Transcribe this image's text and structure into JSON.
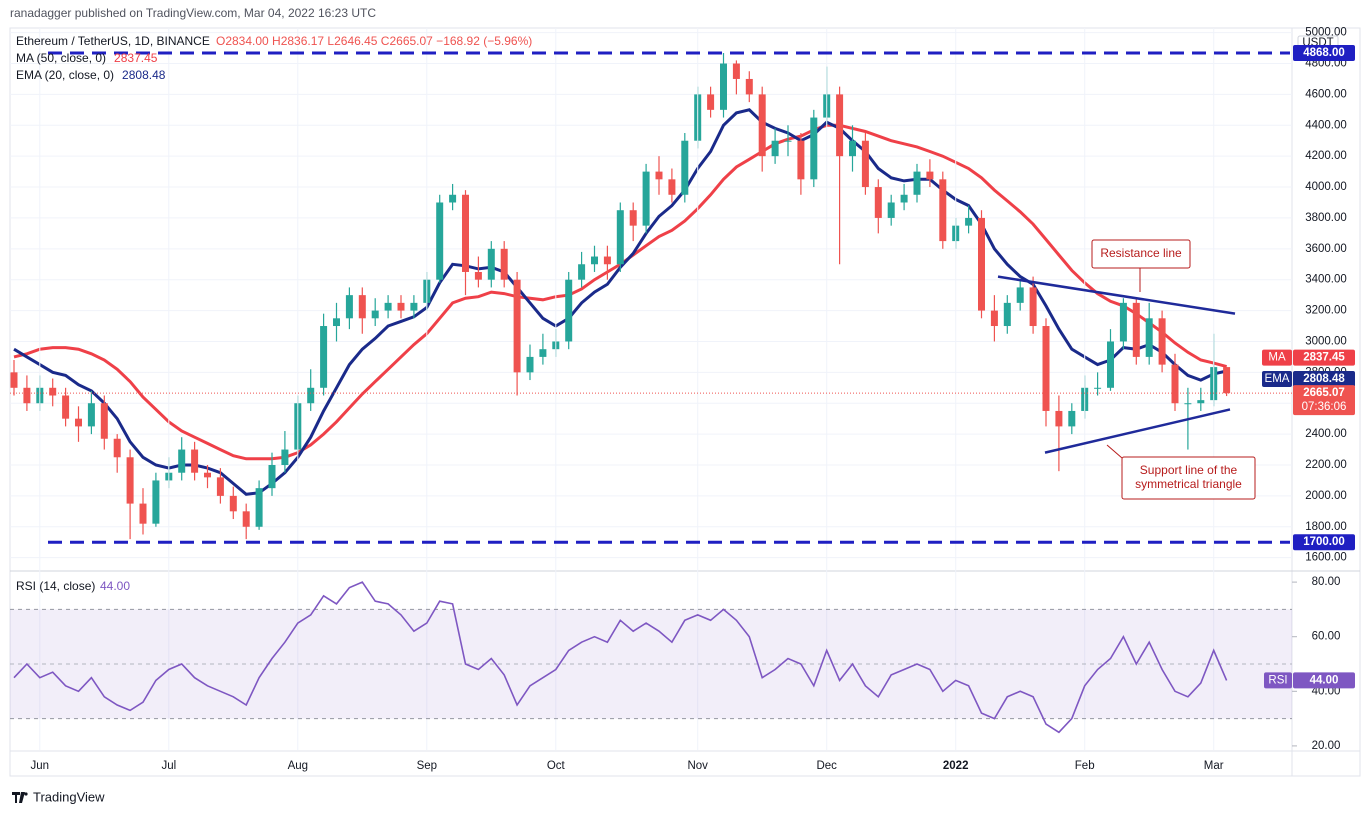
{
  "chart_data": {
    "type": "candlestick",
    "header": "ranadagger published on TradingView.com, Mar 04, 2022 16:23 UTC",
    "title": "Ethereum / TetherUS, 1D, BINANCE",
    "ohlc_text": "O2834.00 H2836.17 L2646.45 C2665.07 −168.92 (−5.96%)",
    "currency": "USDT",
    "color_up": "#26a69a",
    "color_down": "#ef5350",
    "categories": [
      null,
      null,
      "Jun",
      null,
      null,
      null,
      null,
      null,
      null,
      null,
      null,
      null,
      "Jul",
      null,
      null,
      null,
      null,
      null,
      null,
      null,
      null,
      null,
      "Aug",
      null,
      null,
      null,
      null,
      null,
      null,
      null,
      null,
      null,
      "Sep",
      null,
      null,
      null,
      null,
      null,
      null,
      null,
      null,
      null,
      "Oct",
      null,
      null,
      null,
      null,
      null,
      null,
      null,
      null,
      null,
      null,
      "Nov",
      null,
      null,
      null,
      null,
      null,
      null,
      null,
      null,
      null,
      "Dec",
      null,
      null,
      null,
      null,
      null,
      null,
      null,
      null,
      null,
      "2022",
      null,
      null,
      null,
      null,
      null,
      null,
      null,
      null,
      null,
      "Feb",
      null,
      null,
      null,
      null,
      null,
      null,
      null,
      null,
      null,
      "Mar",
      null
    ],
    "open": [
      2800,
      2700,
      2600,
      2700,
      2650,
      2500,
      2450,
      2600,
      2370,
      2250,
      1950,
      1820,
      2100,
      2150,
      2300,
      2150,
      2120,
      2000,
      1900,
      1800,
      2050,
      2200,
      2300,
      2600,
      2700,
      3100,
      3150,
      3300,
      3150,
      3200,
      3250,
      3200,
      3250,
      3400,
      3900,
      3950,
      3450,
      3400,
      3600,
      3400,
      2800,
      2900,
      2950,
      3000,
      3400,
      3500,
      3550,
      3500,
      3850,
      3750,
      4100,
      4050,
      3950,
      4300,
      4600,
      4500,
      4800,
      4700,
      4600,
      4200,
      4300,
      4300,
      4050,
      4450,
      4600,
      4200,
      4300,
      4000,
      3800,
      3900,
      3950,
      4100,
      4050,
      3650,
      3750,
      3800,
      3200,
      3100,
      3250,
      3350,
      3100,
      2550,
      2450,
      2550,
      2700,
      2700,
      3000,
      3250,
      2900,
      3150,
      2850,
      2600,
      2600,
      2620,
      2834
    ],
    "high": [
      2880,
      2780,
      2780,
      2760,
      2700,
      2580,
      2680,
      2650,
      2400,
      2300,
      2050,
      2150,
      2250,
      2380,
      2350,
      2200,
      2180,
      2060,
      1950,
      2100,
      2280,
      2420,
      2650,
      2820,
      3180,
      3250,
      3350,
      3350,
      3280,
      3300,
      3300,
      3300,
      3450,
      3950,
      4020,
      3980,
      3550,
      3650,
      3650,
      3450,
      2980,
      3050,
      3080,
      3450,
      3580,
      3620,
      3620,
      3900,
      3900,
      4150,
      4200,
      4120,
      4350,
      4650,
      4650,
      4868,
      4820,
      4750,
      4650,
      4380,
      4400,
      4350,
      4500,
      4780,
      4650,
      4400,
      4350,
      4050,
      3950,
      4020,
      4150,
      4180,
      4100,
      3800,
      3880,
      3850,
      3300,
      3300,
      3400,
      3420,
      3150,
      2650,
      2600,
      2780,
      2800,
      3080,
      3280,
      3280,
      3250,
      3200,
      2920,
      2700,
      2700,
      3050,
      2836.17
    ],
    "low": [
      2650,
      2550,
      2550,
      2580,
      2450,
      2350,
      2400,
      2300,
      2150,
      1720,
      1750,
      1800,
      2050,
      2100,
      2100,
      2050,
      1950,
      1850,
      1720,
      1780,
      2000,
      2150,
      2280,
      2550,
      2650,
      3000,
      3080,
      3050,
      3100,
      3150,
      3150,
      3150,
      3200,
      3380,
      3850,
      3300,
      3350,
      3350,
      3350,
      2650,
      2750,
      2850,
      2900,
      2950,
      3350,
      3450,
      3400,
      3450,
      3650,
      3700,
      3950,
      3900,
      3900,
      4250,
      4450,
      4450,
      4600,
      4550,
      4100,
      4150,
      4200,
      3950,
      4000,
      4400,
      3500,
      4100,
      3950,
      3700,
      3750,
      3850,
      3900,
      4000,
      3600,
      3600,
      3700,
      3150,
      3000,
      3050,
      3200,
      3050,
      2450,
      2160,
      2400,
      2500,
      2650,
      2680,
      2950,
      2850,
      2850,
      2800,
      2550,
      2300,
      2550,
      2580,
      2646.45
    ],
    "close": [
      2700,
      2600,
      2700,
      2650,
      2500,
      2450,
      2600,
      2370,
      2250,
      1950,
      1820,
      2100,
      2150,
      2300,
      2150,
      2120,
      2000,
      1900,
      1800,
      2050,
      2200,
      2300,
      2600,
      2700,
      3100,
      3150,
      3300,
      3150,
      3200,
      3250,
      3200,
      3250,
      3400,
      3900,
      3950,
      3450,
      3400,
      3600,
      3400,
      2800,
      2900,
      2950,
      3000,
      3400,
      3500,
      3550,
      3500,
      3850,
      3750,
      4100,
      4050,
      3950,
      4300,
      4600,
      4500,
      4800,
      4700,
      4600,
      4200,
      4300,
      4300,
      4050,
      4450,
      4600,
      4200,
      4300,
      4000,
      3800,
      3900,
      3950,
      4100,
      4050,
      3650,
      3750,
      3800,
      3200,
      3100,
      3250,
      3350,
      3100,
      2550,
      2450,
      2550,
      2700,
      2700,
      3000,
      3250,
      2900,
      3150,
      2850,
      2600,
      2600,
      2620,
      2834,
      2665.07
    ],
    "ylim": [
      1520,
      5030
    ],
    "yticks": [
      {
        "value": 1600,
        "label": "1600.00"
      },
      {
        "value": 1800,
        "label": "1800.00"
      },
      {
        "value": 2000,
        "label": "2000.00"
      },
      {
        "value": 2200,
        "label": "2200.00"
      },
      {
        "value": 2400,
        "label": "2400.00"
      },
      {
        "value": 2600,
        "label": "2600.00"
      },
      {
        "value": 2800,
        "label": "2800.00"
      },
      {
        "value": 3000,
        "label": "3000.00"
      },
      {
        "value": 3200,
        "label": "3200.00"
      },
      {
        "value": 3400,
        "label": "3400.00"
      },
      {
        "value": 3600,
        "label": "3600.00"
      },
      {
        "value": 3800,
        "label": "3800.00"
      },
      {
        "value": 4000,
        "label": "4000.00"
      },
      {
        "value": 4200,
        "label": "4200.00"
      },
      {
        "value": 4400,
        "label": "4400.00"
      },
      {
        "value": 4600,
        "label": "4600.00"
      },
      {
        "value": 4800,
        "label": "4800.00"
      },
      {
        "value": 5000,
        "label": "5000.00"
      }
    ],
    "last_price": {
      "value": 2665.07,
      "countdown": "07:36:06"
    },
    "indicators": [
      {
        "legend": "MA (50, close, 0)",
        "tag": "MA",
        "value": 2837.45,
        "color": "#ef4048",
        "values": [
          2900,
          2920,
          2950,
          2960,
          2960,
          2950,
          2920,
          2880,
          2820,
          2740,
          2640,
          2560,
          2480,
          2420,
          2380,
          2340,
          2300,
          2260,
          2240,
          2240,
          2240,
          2250,
          2280,
          2330,
          2400,
          2480,
          2570,
          2660,
          2740,
          2820,
          2900,
          2980,
          3050,
          3150,
          3250,
          3280,
          3290,
          3320,
          3310,
          3290,
          3280,
          3270,
          3290,
          3300,
          3340,
          3400,
          3450,
          3500,
          3560,
          3620,
          3680,
          3720,
          3780,
          3860,
          3950,
          4050,
          4130,
          4180,
          4230,
          4280,
          4310,
          4330,
          4370,
          4400,
          4400,
          4380,
          4360,
          4330,
          4300,
          4280,
          4260,
          4230,
          4200,
          4160,
          4120,
          4060,
          3980,
          3910,
          3840,
          3760,
          3660,
          3560,
          3460,
          3380,
          3310,
          3260,
          3230,
          3180,
          3120,
          3060,
          2990,
          2930,
          2880,
          2860,
          2837.45
        ]
      },
      {
        "legend": "EMA (20, close, 0)",
        "tag": "EMA",
        "value": 2808.48,
        "color": "#1a2a8a",
        "values": [
          2950,
          2900,
          2850,
          2800,
          2780,
          2720,
          2680,
          2600,
          2500,
          2350,
          2250,
          2200,
          2180,
          2200,
          2200,
          2180,
          2150,
          2080,
          2010,
          2020,
          2080,
          2150,
          2250,
          2380,
          2550,
          2700,
          2850,
          2950,
          3020,
          3100,
          3130,
          3160,
          3220,
          3380,
          3500,
          3490,
          3470,
          3480,
          3450,
          3350,
          3250,
          3150,
          3100,
          3150,
          3250,
          3320,
          3370,
          3480,
          3570,
          3700,
          3810,
          3880,
          3980,
          4120,
          4230,
          4400,
          4480,
          4500,
          4420,
          4380,
          4350,
          4300,
          4340,
          4420,
          4380,
          4300,
          4230,
          4120,
          4060,
          4040,
          4050,
          4050,
          3980,
          3920,
          3880,
          3760,
          3600,
          3500,
          3420,
          3370,
          3230,
          3080,
          2950,
          2900,
          2850,
          2880,
          2960,
          2950,
          2980,
          2930,
          2850,
          2780,
          2750,
          2790,
          2808.48
        ]
      }
    ],
    "levels": [
      {
        "value": 4868,
        "label": "4868.00"
      },
      {
        "value": 1700,
        "label": "1700.00"
      }
    ],
    "trend_lines": [
      {
        "y": [
          3420,
          3180
        ]
      },
      {
        "y": [
          2280,
          2560
        ]
      }
    ],
    "annotations": [
      {
        "text": [
          "Resistance line"
        ]
      },
      {
        "text": [
          "Support line of the",
          "symmetrical triangle"
        ]
      }
    ],
    "rsi": {
      "legend": "RSI (14, close)",
      "tag": "RSI",
      "value": 44,
      "value_label": "44.00",
      "color": "#7e57c2",
      "values": [
        45,
        50,
        45,
        47,
        42,
        40,
        45,
        38,
        35,
        33,
        36,
        44,
        48,
        50,
        45,
        42,
        40,
        38,
        35,
        45,
        52,
        58,
        65,
        68,
        75,
        72,
        78,
        80,
        73,
        72,
        68,
        62,
        65,
        73,
        72,
        50,
        48,
        52,
        46,
        35,
        42,
        45,
        48,
        55,
        58,
        60,
        58,
        66,
        62,
        65,
        62,
        58,
        66,
        68,
        66,
        70,
        66,
        60,
        45,
        48,
        52,
        50,
        42,
        55,
        44,
        50,
        42,
        38,
        46,
        48,
        50,
        48,
        40,
        44,
        42,
        32,
        30,
        38,
        40,
        38,
        28,
        25,
        30,
        42,
        48,
        52,
        60,
        50,
        58,
        48,
        40,
        38,
        43,
        55,
        44
      ],
      "ylim": [
        18.5,
        83.7
      ],
      "yticks": [
        {
          "value": 20,
          "label": "20.00"
        },
        {
          "value": 40,
          "label": "40.00"
        },
        {
          "value": 60,
          "label": "60.00"
        },
        {
          "value": 80,
          "label": "80.00"
        }
      ],
      "band": [
        30,
        70
      ],
      "mid": 50
    }
  },
  "footer": "TradingView"
}
